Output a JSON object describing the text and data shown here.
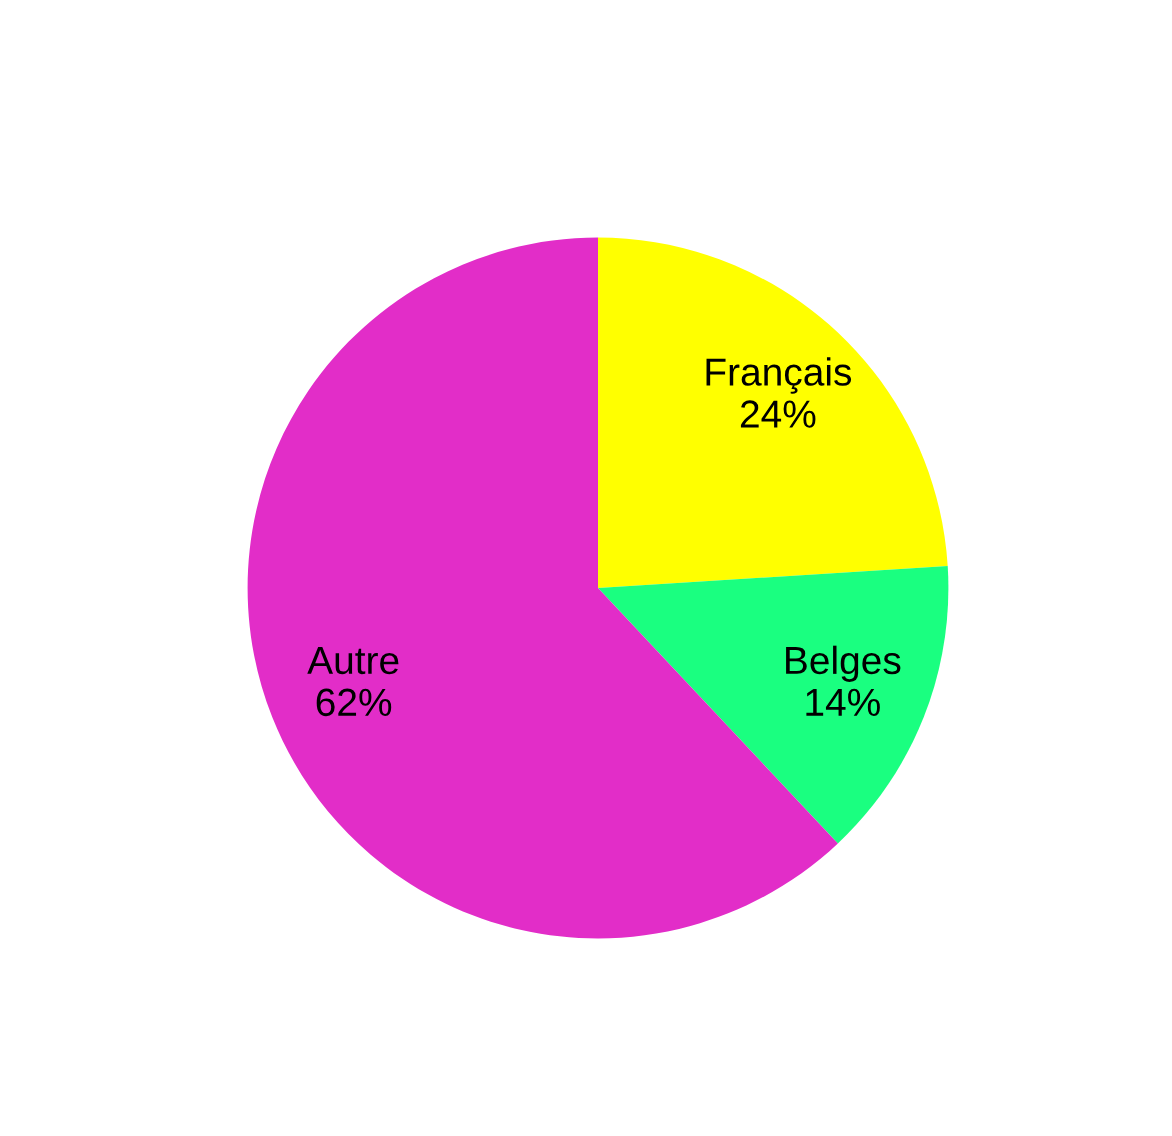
{
  "chart_data": {
    "type": "pie",
    "categories": [
      "Français",
      "Belges",
      "Autre"
    ],
    "values": [
      24,
      14,
      62
    ],
    "value_labels": [
      "24%",
      "14%",
      "62%"
    ],
    "colors": [
      "#ffff00",
      "#1aff80",
      "#e22dc8"
    ],
    "legend": false
  }
}
